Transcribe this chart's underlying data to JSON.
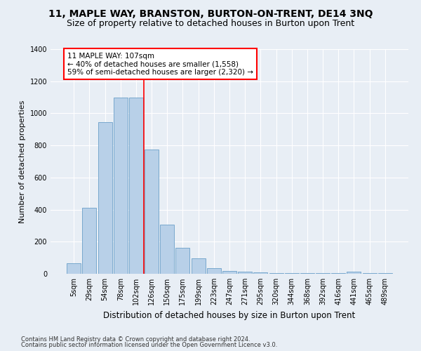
{
  "title": "11, MAPLE WAY, BRANSTON, BURTON-ON-TRENT, DE14 3NQ",
  "subtitle": "Size of property relative to detached houses in Burton upon Trent",
  "xlabel": "Distribution of detached houses by size in Burton upon Trent",
  "ylabel": "Number of detached properties",
  "footnote1": "Contains HM Land Registry data © Crown copyright and database right 2024.",
  "footnote2": "Contains public sector information licensed under the Open Government Licence v3.0.",
  "bar_labels": [
    "5sqm",
    "29sqm",
    "54sqm",
    "78sqm",
    "102sqm",
    "126sqm",
    "150sqm",
    "175sqm",
    "199sqm",
    "223sqm",
    "247sqm",
    "271sqm",
    "295sqm",
    "320sqm",
    "344sqm",
    "368sqm",
    "392sqm",
    "416sqm",
    "441sqm",
    "465sqm",
    "489sqm"
  ],
  "bar_values": [
    65,
    410,
    945,
    1100,
    1100,
    775,
    305,
    160,
    97,
    35,
    18,
    15,
    8,
    5,
    5,
    5,
    5,
    5,
    15,
    5,
    5
  ],
  "bar_color": "#b8d0e8",
  "bar_edge_color": "#6a9fc8",
  "annotation_line1": "11 MAPLE WAY: 107sqm",
  "annotation_line2": "← 40% of detached houses are smaller (1,558)",
  "annotation_line3": "59% of semi-detached houses are larger (2,320) →",
  "vline_color": "red",
  "vline_x": 4.5,
  "ylim": [
    0,
    1400
  ],
  "bg_color": "#e8eef5",
  "plot_bg_color": "#e8eef5",
  "grid_color": "#ffffff",
  "title_fontsize": 10,
  "subtitle_fontsize": 9,
  "xlabel_fontsize": 8.5,
  "ylabel_fontsize": 8,
  "tick_fontsize": 7,
  "annot_fontsize": 7.5,
  "footnote_fontsize": 6
}
